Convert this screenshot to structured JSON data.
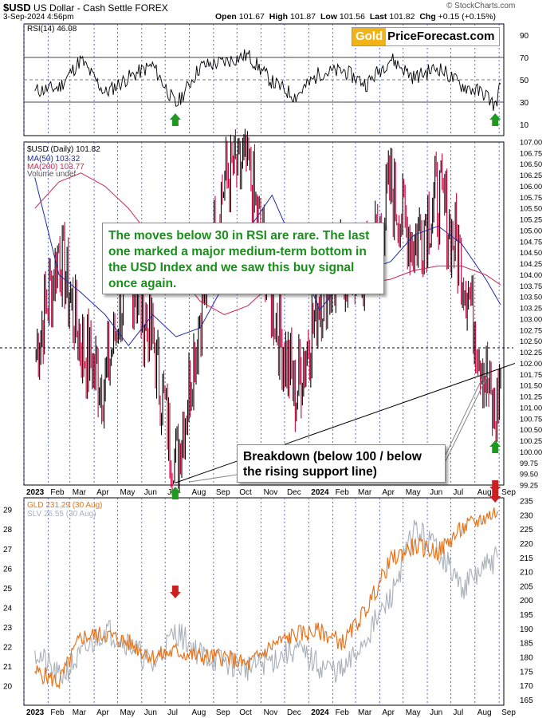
{
  "header": {
    "symbol": "$USD",
    "description": "US Dollar - Cash Settle FOREX",
    "date": "3-Sep-2024 4:56pm",
    "open_label": "Open",
    "open": "101.67",
    "high_label": "High",
    "high": "101.87",
    "low_label": "Low",
    "low": "101.56",
    "last_label": "Last",
    "last": "101.82",
    "chg_label": "Chg",
    "chg": "+0.15 (+0.15%)",
    "copyright": "© StockCharts.com"
  },
  "brand": {
    "gold": "Gold",
    "rest": "PriceForecast.com"
  },
  "colors": {
    "price_up": "#000000",
    "price_down": "#c8003c",
    "ma50": "#1f2aa8",
    "ma200": "#cc2a55",
    "gld": "#e8731a",
    "slv": "#a9b0b8",
    "green_arrow": "#1f9a1f",
    "red_arrow": "#cc1f1f",
    "callout_text": "#1b8f1b",
    "month_grid": "#3347d8"
  },
  "annotations": {
    "callout_rsi": "The moves below 30 in RSI are rare. The last one marked a major medium-term bottom in the USD Index and we saw this buy signal once again.",
    "callout_breakdown": "Breakdown (below 100 / below the rising support line)"
  },
  "months": [
    "2023",
    "Feb",
    "Mar",
    "Apr",
    "May",
    "Jun",
    "Jul",
    "Aug",
    "Sep",
    "Oct",
    "Nov",
    "Dec",
    "2024",
    "Feb",
    "Mar",
    "Apr",
    "May",
    "Jun",
    "Jul",
    "Aug",
    "Sep"
  ],
  "chart_data": [
    {
      "type": "line",
      "panel": "RSI",
      "legend": [
        "RSI(14) 46.08"
      ],
      "ylim": [
        0,
        100
      ],
      "y_ticks": [
        10,
        30,
        50,
        70,
        90
      ],
      "reference_lines": [
        30,
        50,
        70
      ],
      "series": [
        {
          "name": "RSI(14)",
          "x": [
            "2023-01",
            "2023-02",
            "2023-03",
            "2023-04",
            "2023-05",
            "2023-06",
            "2023-07",
            "2023-08",
            "2023-09",
            "2023-10",
            "2023-11",
            "2023-12",
            "2024-01",
            "2024-02",
            "2024-03",
            "2024-04",
            "2024-05",
            "2024-06",
            "2024-07",
            "2024-08",
            "2024-08-27",
            "2024-09-03"
          ],
          "values": [
            40,
            43,
            68,
            38,
            52,
            63,
            27,
            62,
            66,
            72,
            48,
            35,
            56,
            58,
            46,
            69,
            52,
            61,
            45,
            37,
            26,
            46.08
          ]
        }
      ],
      "markers": [
        {
          "type": "green-arrow-up",
          "x": "2023-07-14"
        },
        {
          "type": "green-arrow-up",
          "x": "2024-08-27"
        }
      ]
    },
    {
      "type": "bar",
      "panel": "USD Daily (OHLC)",
      "legend": [
        "$USD (Daily) 101.82",
        "MA(50) 103.32",
        "MA(200) 103.77",
        "Volume undef"
      ],
      "ylim": [
        99.25,
        107.0
      ],
      "y_ticks": [
        "99.25",
        "99.50",
        "99.75",
        "100.00",
        "100.25",
        "100.50",
        "100.75",
        "101.00",
        "101.25",
        "101.50",
        "101.75",
        "102.00",
        "102.25",
        "102.50",
        "102.75",
        "103.00",
        "103.25",
        "103.50",
        "103.75",
        "104.00",
        "104.25",
        "104.50",
        "104.75",
        "105.00",
        "105.25",
        "105.50",
        "105.75",
        "106.00",
        "106.25",
        "106.50",
        "106.75",
        "107.00"
      ],
      "horizontal_line": 102.35,
      "support_line": {
        "from": {
          "x": "2023-07-14",
          "y": 99.3
        },
        "to": {
          "x": "2024-09-03",
          "y": 102.0
        }
      },
      "series": [
        {
          "name": "$USD",
          "x": [
            "2023-01",
            "2023-02",
            "2023-03",
            "2023-04",
            "2023-05",
            "2023-06",
            "2023-07-14",
            "2023-08",
            "2023-09",
            "2023-10",
            "2023-11",
            "2023-12",
            "2024-01",
            "2024-02",
            "2024-03",
            "2024-04",
            "2024-05",
            "2024-06",
            "2024-07",
            "2024-08-27",
            "2024-09-03"
          ],
          "values": [
            102.1,
            104.6,
            102.4,
            101.5,
            104.2,
            102.5,
            99.6,
            103.1,
            106.2,
            106.5,
            103.4,
            101.3,
            103.6,
            104.2,
            104.1,
            105.9,
            104.7,
            105.8,
            104.3,
            100.6,
            101.82
          ]
        },
        {
          "name": "MA(50)",
          "x": [
            "2023-01",
            "2023-02",
            "2023-03",
            "2023-04",
            "2023-05",
            "2023-06",
            "2023-07",
            "2023-08",
            "2023-09",
            "2023-10",
            "2023-11",
            "2023-12",
            "2024-01",
            "2024-02",
            "2024-03",
            "2024-04",
            "2024-05",
            "2024-06",
            "2024-07",
            "2024-08",
            "2024-09-03"
          ],
          "values": [
            106.2,
            104.0,
            103.6,
            103.1,
            102.4,
            103.1,
            102.6,
            102.8,
            103.8,
            105.0,
            105.8,
            104.6,
            103.2,
            103.9,
            104.1,
            104.3,
            104.9,
            105.1,
            104.7,
            103.9,
            103.32
          ]
        },
        {
          "name": "MA(200)",
          "x": [
            "2023-01",
            "2023-02",
            "2023-03",
            "2023-04",
            "2023-05",
            "2023-06",
            "2023-07",
            "2023-08",
            "2023-09",
            "2023-10",
            "2023-11",
            "2023-12",
            "2024-01",
            "2024-02",
            "2024-03",
            "2024-04",
            "2024-05",
            "2024-06",
            "2024-07",
            "2024-08",
            "2024-09-03"
          ],
          "values": [
            105.5,
            106.1,
            106.3,
            106.0,
            105.5,
            104.8,
            104.1,
            103.4,
            103.1,
            103.3,
            103.8,
            104.0,
            104.0,
            103.9,
            103.8,
            103.9,
            104.1,
            104.2,
            104.2,
            104.0,
            103.77
          ]
        }
      ],
      "markers": [
        {
          "type": "green-arrow-up",
          "x": "2023-07-14"
        },
        {
          "type": "green-arrow-up",
          "x": "2024-08-27"
        },
        {
          "type": "red-arrow-down",
          "x": "2024-08-27"
        }
      ]
    },
    {
      "type": "line",
      "panel": "GLD vs SLV",
      "legend": [
        "GLD 231.29 (30 Aug)",
        "SLV 26.55 (30 Aug)"
      ],
      "left_axis_ticks": [
        20,
        21,
        22,
        23,
        24,
        25,
        26,
        27,
        28,
        29
      ],
      "right_axis_ticks": [
        165,
        170,
        175,
        180,
        185,
        190,
        195,
        200,
        205,
        210,
        215,
        220,
        225,
        230,
        235
      ],
      "series": [
        {
          "name": "GLD",
          "axis": "right",
          "x": [
            "2023-01",
            "2023-02",
            "2023-03",
            "2023-04",
            "2023-05",
            "2023-06",
            "2023-07",
            "2023-08",
            "2023-09",
            "2023-10",
            "2023-11",
            "2023-12",
            "2024-01",
            "2024-02",
            "2024-03",
            "2024-04",
            "2024-05",
            "2024-06",
            "2024-07",
            "2024-08-30"
          ],
          "values": [
            175,
            171,
            187,
            188,
            185,
            180,
            182,
            180,
            180,
            177,
            184,
            188,
            189,
            185,
            197,
            214,
            219,
            217,
            225,
            231.29
          ]
        },
        {
          "name": "SLV",
          "axis": "left",
          "x": [
            "2023-01",
            "2023-02",
            "2023-03",
            "2023-04",
            "2023-05",
            "2023-06",
            "2023-07",
            "2023-08",
            "2023-09",
            "2023-10",
            "2023-11",
            "2023-12",
            "2024-01",
            "2024-02",
            "2024-03",
            "2024-04",
            "2024-05",
            "2024-06",
            "2024-07",
            "2024-08-30"
          ],
          "values": [
            21.8,
            20.4,
            21.5,
            22.9,
            22.2,
            21.0,
            22.8,
            21.6,
            21.2,
            20.9,
            21.3,
            21.9,
            21.0,
            20.7,
            22.5,
            24.5,
            28.0,
            27.0,
            25.0,
            26.55
          ]
        }
      ],
      "markers": [
        {
          "type": "red-arrow-down",
          "x": "2023-07-14"
        },
        {
          "type": "red-arrow-down",
          "x": "2024-08-27"
        }
      ]
    }
  ]
}
